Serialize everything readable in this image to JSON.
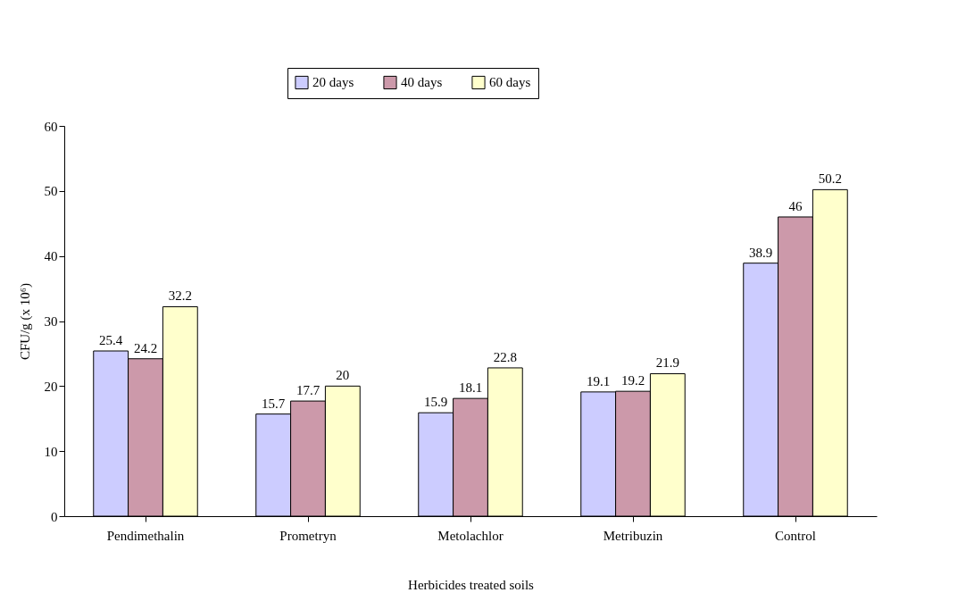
{
  "chart_data": {
    "type": "bar",
    "xlabel": "Herbicides treated soils",
    "ylabel": "CFU/g (x 10⁶)",
    "categories": [
      "Pendimethalin",
      "Prometryn",
      "Metolachlor",
      "Metribuzin",
      "Control"
    ],
    "series": [
      {
        "name": "20 days",
        "color": "#ccccff",
        "values": [
          25.4,
          15.7,
          15.9,
          19.1,
          38.9
        ]
      },
      {
        "name": "40 days",
        "color": "#cc99aa",
        "values": [
          24.2,
          17.7,
          18.1,
          19.2,
          46
        ]
      },
      {
        "name": "60 days",
        "color": "#ffffcc",
        "values": [
          32.2,
          20,
          22.8,
          21.9,
          50.2
        ]
      }
    ],
    "ylim": [
      0,
      60
    ],
    "yticks": [
      0,
      10,
      20,
      30,
      40,
      50,
      60
    ],
    "grid": false,
    "legend": "top",
    "data_labels": true
  }
}
